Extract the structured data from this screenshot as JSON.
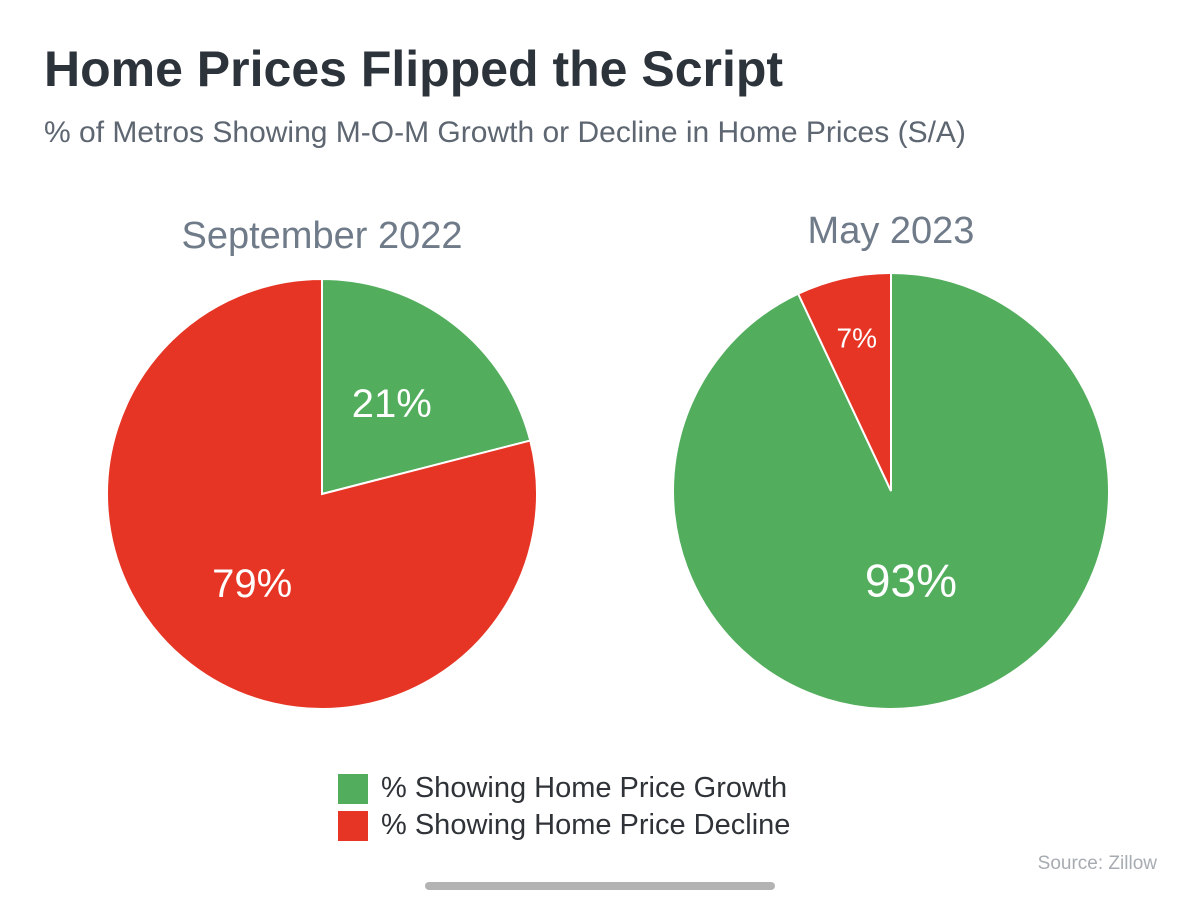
{
  "title": "Home Prices Flipped the Script",
  "subtitle": "% of Metros Showing M-O-M Growth or Decline in Home Prices (S/A)",
  "source": "Source: Zillow",
  "colors": {
    "growth": "#52ad5c",
    "decline": "#e63525"
  },
  "chart_data": [
    {
      "type": "pie",
      "title": "September 2022",
      "slices": [
        {
          "name": "% Showing Home Price Growth",
          "value": 21,
          "label": "21%",
          "color": "#52ad5c"
        },
        {
          "name": "% Showing Home Price Decline",
          "value": 79,
          "label": "79%",
          "color": "#e63525"
        }
      ],
      "legend": "bottom"
    },
    {
      "type": "pie",
      "title": "May 2023",
      "slices": [
        {
          "name": "% Showing Home Price Growth",
          "value": 93,
          "label": "93%",
          "color": "#52ad5c"
        },
        {
          "name": "% Showing Home Price Decline",
          "value": 7,
          "label": "7%",
          "color": "#e63525"
        }
      ],
      "legend": "bottom"
    }
  ],
  "legend": [
    {
      "label": "% Showing Home Price Growth",
      "color": "#52ad5c"
    },
    {
      "label": "% Showing Home Price Decline",
      "color": "#e63525"
    }
  ]
}
